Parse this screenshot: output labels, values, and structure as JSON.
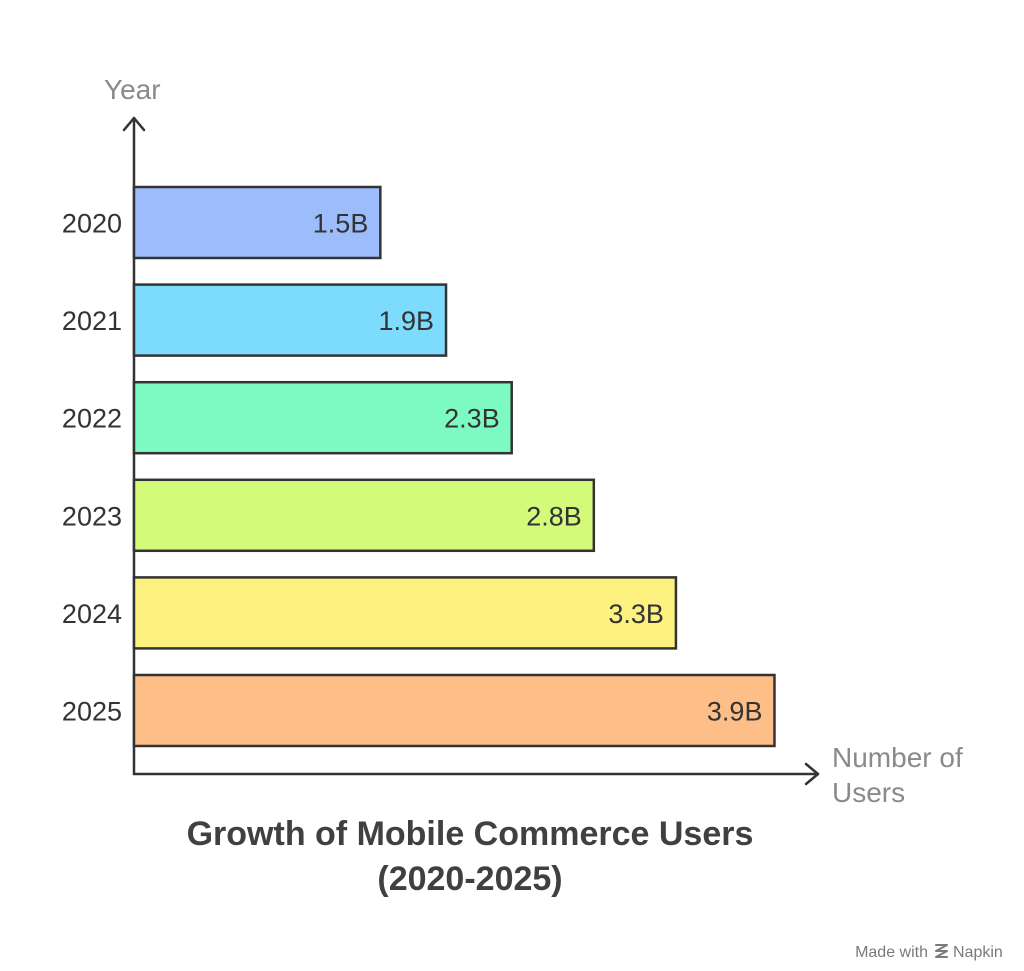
{
  "chart_data": {
    "type": "bar",
    "orientation": "horizontal",
    "title_lines": [
      "Growth of Mobile Commerce Users",
      "(2020-2025)"
    ],
    "ylabel": "Year",
    "xlabel_lines": [
      "Number of",
      "Users"
    ],
    "xlim": [
      0,
      4.5
    ],
    "grid": false,
    "categories": [
      "2020",
      "2021",
      "2022",
      "2023",
      "2024",
      "2025"
    ],
    "values": [
      1.5,
      1.9,
      2.3,
      2.8,
      3.3,
      3.9
    ],
    "value_labels": [
      "1.5B",
      "1.9B",
      "2.3B",
      "2.8B",
      "3.3B",
      "3.9B"
    ],
    "colors": [
      "#9cbcfc",
      "#7ddcfd",
      "#7df9c2",
      "#d4fa7a",
      "#fdf17f",
      "#fdbe88"
    ]
  },
  "credit": {
    "prefix": "Made with",
    "brand": "Napkin",
    "icon": "napkin-logo-icon"
  }
}
